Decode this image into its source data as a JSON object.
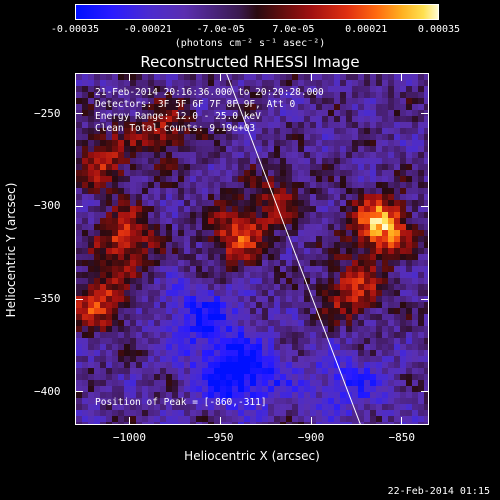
{
  "colorbar": {
    "ticks": [
      "-0.00035",
      "-0.00021",
      "-7.0e-05",
      "7.0e-05",
      "0.00021",
      "0.00035"
    ],
    "units": "(photons cm⁻² s⁻¹ asec⁻²)"
  },
  "chart_data": {
    "type": "heatmap",
    "title": "Reconstructed RHESSI Image",
    "xlabel": "Heliocentric X (arcsec)",
    "ylabel": "Heliocentric Y (arcsec)",
    "xlim": [
      -1030,
      -835
    ],
    "ylim": [
      -418,
      -228
    ],
    "x_ticks": [
      -1000,
      -950,
      -900,
      -850
    ],
    "y_ticks": [
      -250,
      -300,
      -350,
      -400
    ],
    "x_tick_labels": [
      "−1000",
      "−950",
      "−900",
      "−850"
    ],
    "y_tick_labels": [
      "−250",
      "−300",
      "−350",
      "−400"
    ],
    "colorbar_range": [
      -0.00035,
      0.00035
    ],
    "peak": [
      -860,
      -311
    ],
    "bright_sources": [
      {
        "x": -862,
        "y": -310,
        "level": 1.0
      },
      {
        "x": -878,
        "y": -345,
        "level": 0.6
      },
      {
        "x": -942,
        "y": -315,
        "level": 0.65
      },
      {
        "x": -1002,
        "y": -318,
        "level": 0.7
      },
      {
        "x": -1018,
        "y": -350,
        "level": 0.65
      },
      {
        "x": -1015,
        "y": -275,
        "level": 0.55
      },
      {
        "x": -982,
        "y": -258,
        "level": 0.5
      },
      {
        "x": -920,
        "y": -295,
        "level": 0.45
      }
    ],
    "dim_regions": [
      {
        "x": -940,
        "y": -390,
        "level": -0.8
      },
      {
        "x": -960,
        "y": -360,
        "level": -0.5
      },
      {
        "x": -880,
        "y": -395,
        "level": -0.4
      }
    ],
    "limb_line": {
      "x": [
        -947,
        -873
      ],
      "y": [
        -228,
        -418
      ]
    },
    "annotations": [
      "21-Feb-2014 20:16:36.000 to 20:20:28.000",
      "Detectors: 3F 5F 6F 7F 8F 9F, Att 0",
      "Energy Range: 12.0 - 25.0 keV",
      "Clean    Total counts: 9.19e+03"
    ],
    "peak_label": "Position of Peak = [-860,-311]"
  },
  "footer": {
    "timestamp": "22-Feb-2014 01:15"
  }
}
